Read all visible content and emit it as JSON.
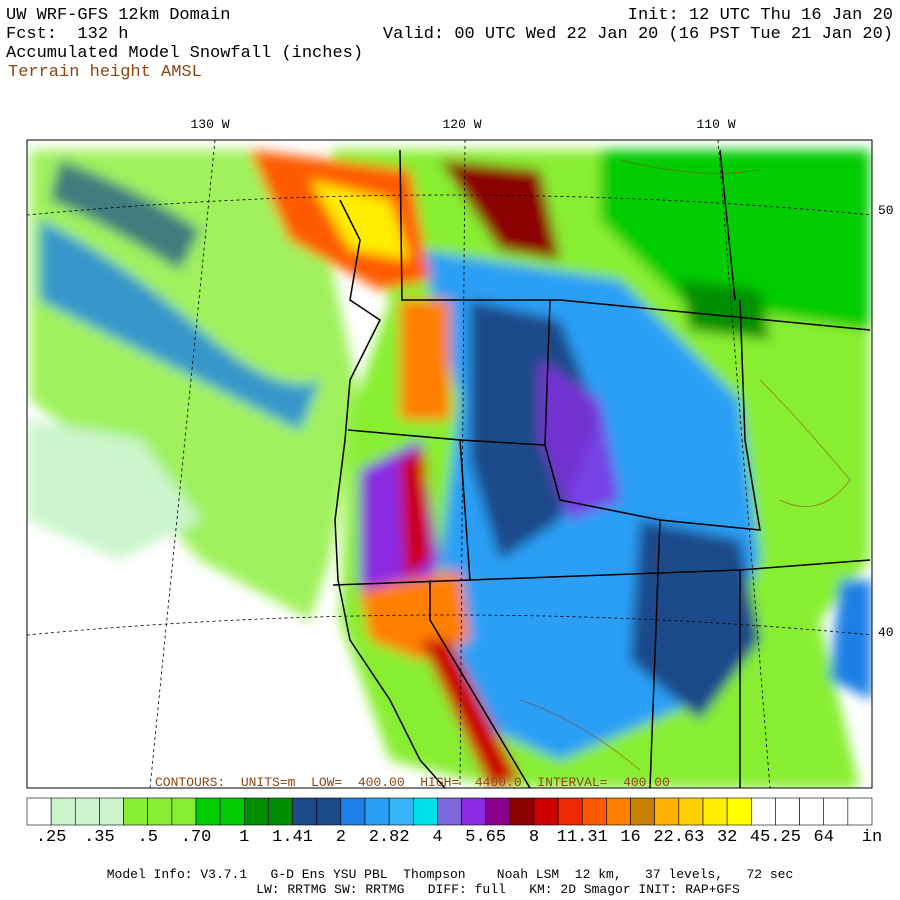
{
  "header": {
    "model": "UW WRF-GFS 12km Domain",
    "forecast": "Fcst:  132 h",
    "field": "Accumulated Model Snowfall (inches)",
    "contour_field": "Terrain height AMSL",
    "init": "Init: 12 UTC Thu 16 Jan 20",
    "valid": "Valid: 00 UTC Wed 22 Jan 20 (16 PST Tue 21 Jan 20)"
  },
  "map": {
    "longitude_labels": [
      "130 W",
      "120 W",
      "110 W"
    ],
    "latitude_labels": [
      "50",
      "40"
    ],
    "contour_note": "CONTOURS:  UNITS=m  LOW=  400.00  HIGH=  4400.0  INTERVAL=  400.00"
  },
  "colorbar": {
    "colors": [
      "#ffffff",
      "#ccf5cc",
      "#ccf5cc",
      "#ccf5cc",
      "#88ee33",
      "#88ee33",
      "#88ee33",
      "#00cc00",
      "#00cc00",
      "#008f00",
      "#008f00",
      "#1a4a8a",
      "#1a4a8a",
      "#1e7fe6",
      "#2a9ff5",
      "#38b5f5",
      "#00e0e8",
      "#7b68d8",
      "#8a2be2",
      "#8b008b",
      "#8b0000",
      "#cc0000",
      "#ee2800",
      "#ff5a00",
      "#ff7f00",
      "#c98000",
      "#ffb000",
      "#ffd000",
      "#ffee00",
      "#ffff00",
      "#ffffff",
      "#ffffff",
      "#ffffff",
      "#ffffff",
      "#ffffff"
    ],
    "labels": [
      ".25",
      ".35",
      ".5",
      ".70",
      "1",
      "1.41",
      "2",
      "2.82",
      "4",
      "5.65",
      "8",
      "11.31",
      "16",
      "22.63",
      "32",
      "45.25",
      "64"
    ],
    "unit": "in"
  },
  "footer": {
    "line1": "Model Info: V3.7.1   G-D Ens YSU PBL  Thompson    Noah LSM  12 km,   37 levels,   72 sec",
    "line2": "LW: RRTMG SW: RRTMG   DIFF: full   KM: 2D Smagor INIT: RAP+GFS"
  }
}
